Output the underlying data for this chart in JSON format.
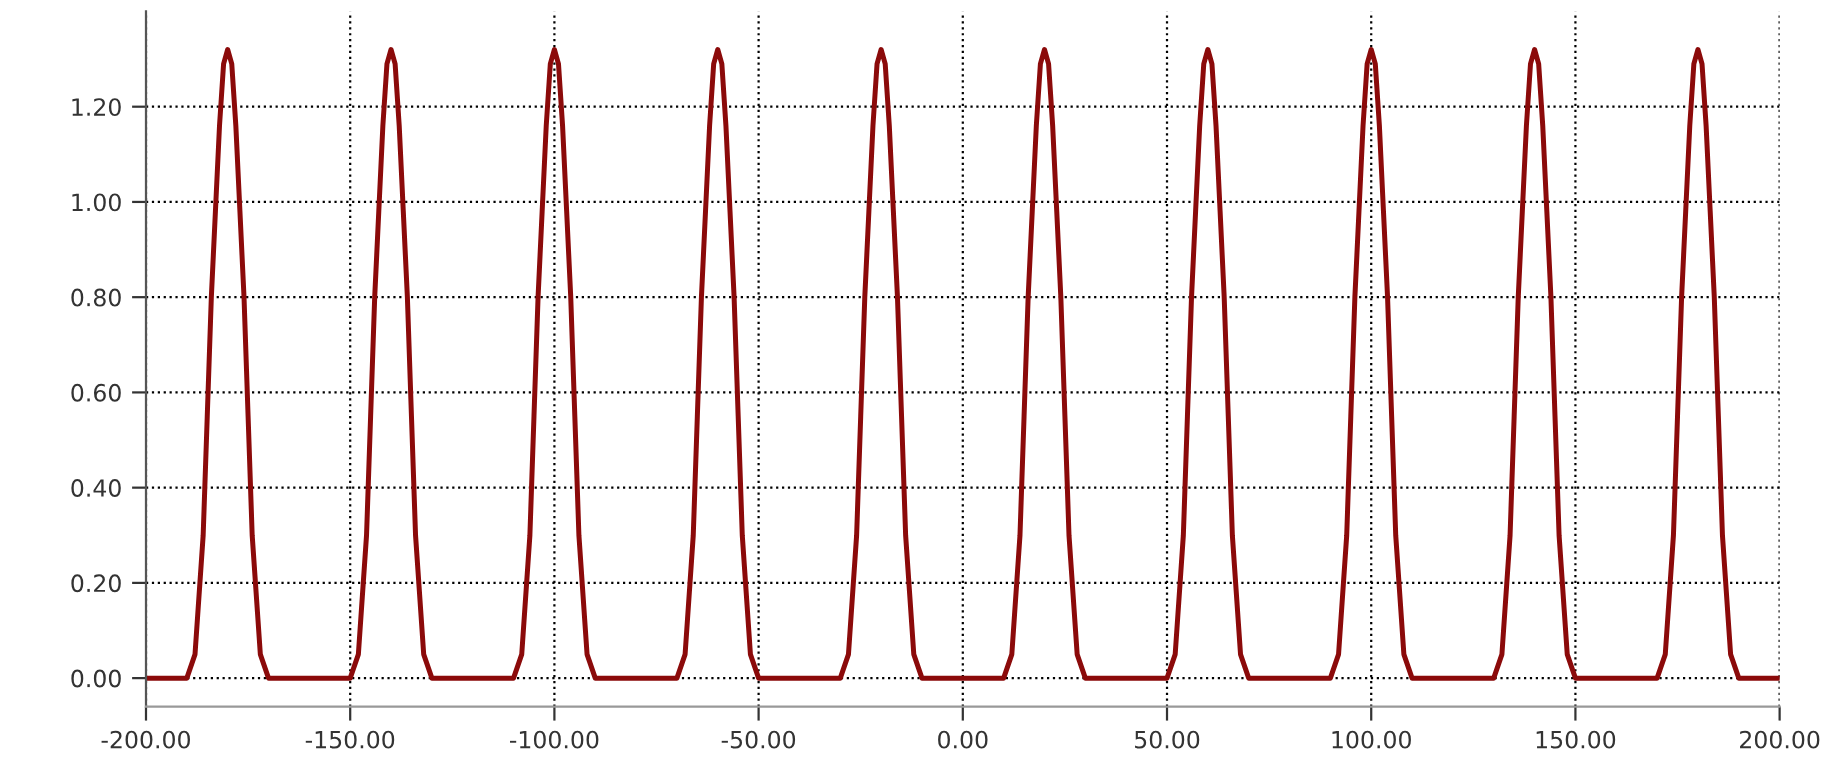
{
  "chart_data": {
    "type": "line",
    "x": [
      -200,
      -190,
      -188,
      -186,
      -185,
      -184,
      -183,
      -182,
      -181,
      -180,
      -179,
      -178,
      -177,
      -176,
      -175,
      -174,
      -172,
      -170,
      -150,
      -148,
      -146,
      -145,
      -144,
      -143,
      -142,
      -141,
      -140,
      -139,
      -138,
      -137,
      -136,
      -135,
      -134,
      -132,
      -130,
      -110,
      -108,
      -106,
      -105,
      -104,
      -103,
      -102,
      -101,
      -100,
      -99,
      -98,
      -97,
      -96,
      -95,
      -94,
      -92,
      -90,
      -70,
      -68,
      -66,
      -65,
      -64,
      -63,
      -62,
      -61,
      -60,
      -59,
      -58,
      -57,
      -56,
      -55,
      -54,
      -52,
      -50,
      -30,
      -28,
      -26,
      -25,
      -24,
      -23,
      -22,
      -21,
      -20,
      -19,
      -18,
      -17,
      -16,
      -15,
      -14,
      -12,
      -10,
      10,
      12,
      14,
      15,
      16,
      17,
      18,
      19,
      20,
      21,
      22,
      23,
      24,
      25,
      26,
      28,
      30,
      50,
      52,
      54,
      55,
      56,
      57,
      58,
      59,
      60,
      61,
      62,
      63,
      64,
      65,
      66,
      68,
      70,
      90,
      92,
      94,
      95,
      96,
      97,
      98,
      99,
      100,
      101,
      102,
      103,
      104,
      105,
      106,
      108,
      110,
      130,
      132,
      134,
      135,
      136,
      137,
      138,
      139,
      140,
      141,
      142,
      143,
      144,
      145,
      146,
      148,
      150,
      170,
      172,
      174,
      175,
      176,
      177,
      178,
      179,
      180,
      181,
      182,
      183,
      184,
      185,
      186,
      188,
      190,
      200
    ],
    "values": [
      0,
      0,
      0.05,
      0.3,
      0.55,
      0.8,
      0.98,
      1.16,
      1.29,
      1.32,
      1.29,
      1.16,
      0.98,
      0.8,
      0.55,
      0.3,
      0.05,
      0,
      0,
      0.05,
      0.3,
      0.55,
      0.8,
      0.98,
      1.16,
      1.29,
      1.32,
      1.29,
      1.16,
      0.98,
      0.8,
      0.55,
      0.3,
      0.05,
      0,
      0,
      0.05,
      0.3,
      0.55,
      0.8,
      0.98,
      1.16,
      1.29,
      1.32,
      1.29,
      1.16,
      0.98,
      0.8,
      0.55,
      0.3,
      0.05,
      0,
      0,
      0.05,
      0.3,
      0.55,
      0.8,
      0.98,
      1.16,
      1.29,
      1.32,
      1.29,
      1.16,
      0.98,
      0.8,
      0.55,
      0.3,
      0.05,
      0,
      0,
      0.05,
      0.3,
      0.55,
      0.8,
      0.98,
      1.16,
      1.29,
      1.32,
      1.29,
      1.16,
      0.98,
      0.8,
      0.55,
      0.3,
      0.05,
      0,
      0,
      0.05,
      0.3,
      0.55,
      0.8,
      0.98,
      1.16,
      1.29,
      1.32,
      1.29,
      1.16,
      0.98,
      0.8,
      0.55,
      0.3,
      0.05,
      0,
      0,
      0.05,
      0.3,
      0.55,
      0.8,
      0.98,
      1.16,
      1.29,
      1.32,
      1.29,
      1.16,
      0.98,
      0.8,
      0.55,
      0.3,
      0.05,
      0,
      0,
      0.05,
      0.3,
      0.55,
      0.8,
      0.98,
      1.16,
      1.29,
      1.32,
      1.29,
      1.16,
      0.98,
      0.8,
      0.55,
      0.3,
      0.05,
      0,
      0,
      0.05,
      0.3,
      0.55,
      0.8,
      0.98,
      1.16,
      1.29,
      1.32,
      1.29,
      1.16,
      0.98,
      0.8,
      0.55,
      0.3,
      0.05,
      0,
      0,
      0.05,
      0.3,
      0.55,
      0.8,
      0.98,
      1.16,
      1.29,
      1.32,
      1.29,
      1.16,
      0.98,
      0.8,
      0.55,
      0.3,
      0.05,
      0,
      0
    ],
    "color": "#8b0a0a",
    "xlim": [
      -200,
      200
    ],
    "xticks": [
      {
        "value": -200,
        "label": "-200.00"
      },
      {
        "value": -150,
        "label": "-150.00"
      },
      {
        "value": -100,
        "label": "-100.00"
      },
      {
        "value": -50,
        "label": "-50.00"
      },
      {
        "value": 0,
        "label": "0.00"
      },
      {
        "value": 50,
        "label": "50.00"
      },
      {
        "value": 100,
        "label": "100.00"
      },
      {
        "value": 150,
        "label": "150.00"
      },
      {
        "value": 200,
        "label": "200.00"
      }
    ],
    "ylim": [
      -0.06,
      1.4
    ],
    "yticks": [
      {
        "value": 0,
        "label": "0.00"
      },
      {
        "value": 0.2,
        "label": "0.20"
      },
      {
        "value": 0.4,
        "label": "0.40"
      },
      {
        "value": 0.6,
        "label": "0.60"
      },
      {
        "value": 0.8,
        "label": "0.80"
      },
      {
        "value": 1.0,
        "label": "1.00"
      },
      {
        "value": 1.2,
        "label": "1.20"
      }
    ],
    "grid": true,
    "line_style": "solid"
  }
}
